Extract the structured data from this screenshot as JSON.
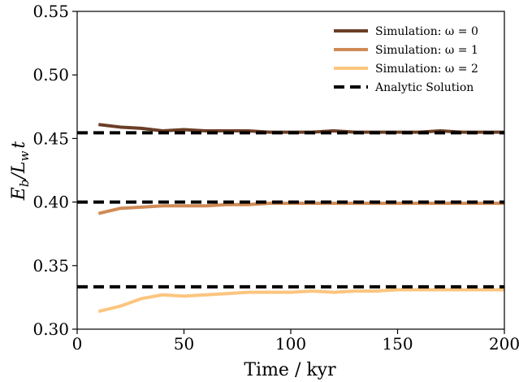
{
  "chart_data": {
    "type": "line",
    "title": "",
    "xlabel": "Time / kyr",
    "ylabel": "E_b/L_w t",
    "ylabel_parts": {
      "main": "E",
      "sub": "b",
      "slash": "/L",
      "sub2": "w",
      "end": "t"
    },
    "xlim": [
      0,
      200
    ],
    "ylim": [
      0.3,
      0.55
    ],
    "xticks": [
      0,
      50,
      100,
      150,
      200
    ],
    "xtick_labels": [
      "0",
      "50",
      "100",
      "150",
      "200"
    ],
    "yticks": [
      0.3,
      0.35,
      0.4,
      0.45,
      0.5,
      0.55
    ],
    "ytick_labels": [
      "0.30",
      "0.35",
      "0.40",
      "0.45",
      "0.50",
      "0.55"
    ],
    "grid": false,
    "legend_position": "top-right",
    "series": [
      {
        "name": "Simulation: ω = 0",
        "color": "#6b3e26",
        "style": "solid",
        "x": [
          10,
          20,
          30,
          40,
          50,
          60,
          70,
          80,
          90,
          100,
          110,
          120,
          130,
          140,
          150,
          160,
          170,
          180,
          190,
          200
        ],
        "y": [
          0.461,
          0.459,
          0.458,
          0.456,
          0.457,
          0.456,
          0.456,
          0.456,
          0.455,
          0.455,
          0.455,
          0.456,
          0.455,
          0.455,
          0.455,
          0.455,
          0.456,
          0.455,
          0.455,
          0.455
        ]
      },
      {
        "name": "Simulation: ω = 1",
        "color": "#cf8a55",
        "style": "solid",
        "x": [
          10,
          20,
          30,
          40,
          50,
          60,
          70,
          80,
          90,
          100,
          110,
          120,
          130,
          140,
          150,
          160,
          170,
          180,
          190,
          200
        ],
        "y": [
          0.391,
          0.395,
          0.396,
          0.397,
          0.397,
          0.397,
          0.398,
          0.398,
          0.399,
          0.399,
          0.399,
          0.399,
          0.399,
          0.399,
          0.399,
          0.399,
          0.399,
          0.399,
          0.399,
          0.399
        ]
      },
      {
        "name": "Simulation: ω = 2",
        "color": "#fcc57f",
        "style": "solid",
        "x": [
          10,
          20,
          30,
          40,
          50,
          60,
          70,
          80,
          90,
          100,
          110,
          120,
          130,
          140,
          150,
          160,
          170,
          180,
          190,
          200
        ],
        "y": [
          0.314,
          0.318,
          0.324,
          0.327,
          0.326,
          0.327,
          0.328,
          0.329,
          0.329,
          0.329,
          0.33,
          0.329,
          0.33,
          0.33,
          0.331,
          0.331,
          0.331,
          0.331,
          0.331,
          0.331
        ]
      },
      {
        "name": "Analytic Solution",
        "color": "#000000",
        "style": "dashed",
        "segments": [
          {
            "x": [
              0,
              200
            ],
            "y": [
              0.4545,
              0.4545
            ]
          },
          {
            "x": [
              0,
              200
            ],
            "y": [
              0.4,
              0.4
            ]
          },
          {
            "x": [
              0,
              200
            ],
            "y": [
              0.3333,
              0.3333
            ]
          }
        ]
      }
    ]
  }
}
